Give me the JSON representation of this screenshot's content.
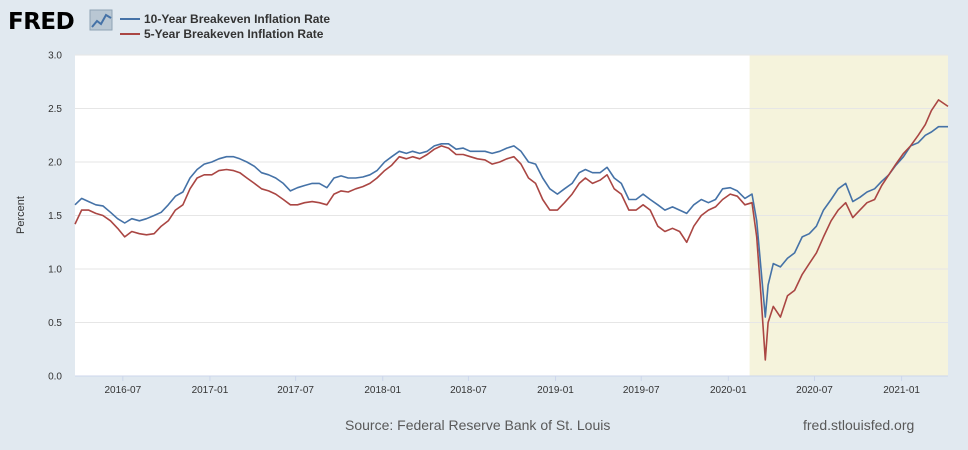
{
  "header": {
    "logo_text": "FRED",
    "logo_icon": "trend-line-icon"
  },
  "colors": {
    "background": "#e1e9f0",
    "plot_background": "#ffffff",
    "recession_shade": "#f5f3dc",
    "gridline": "#e6e6e6",
    "series_10y": "#4572a7",
    "series_5y": "#aa4643"
  },
  "footer": {
    "source": "Source: Federal Reserve Bank of St. Louis",
    "url": "fred.stlouisfed.org"
  },
  "chart_data": {
    "type": "line",
    "title": "",
    "xlabel": "",
    "ylabel": "Percent",
    "ylim": [
      0,
      3
    ],
    "yticks": [
      "0.0",
      "0.5",
      "1.0",
      "1.5",
      "2.0",
      "2.5",
      "3.0"
    ],
    "xlim": [
      "2016-03-22",
      "2021-04-09"
    ],
    "xticks": [
      "2016-07",
      "2017-01",
      "2017-07",
      "2018-01",
      "2018-07",
      "2019-01",
      "2019-07",
      "2020-01",
      "2020-07",
      "2021-01"
    ],
    "grid": true,
    "legend_position": "top-left",
    "shaded_region": {
      "start": "2020-02-15",
      "end": "2021-04-09"
    },
    "series": [
      {
        "name": "10-Year Breakeven Inflation Rate",
        "color": "#4572a7",
        "points": [
          [
            "2016-03-22",
            1.6
          ],
          [
            "2016-04-05",
            1.66
          ],
          [
            "2016-04-20",
            1.63
          ],
          [
            "2016-05-05",
            1.6
          ],
          [
            "2016-05-20",
            1.59
          ],
          [
            "2016-06-05",
            1.53
          ],
          [
            "2016-06-20",
            1.47
          ],
          [
            "2016-07-05",
            1.43
          ],
          [
            "2016-07-20",
            1.47
          ],
          [
            "2016-08-05",
            1.45
          ],
          [
            "2016-08-20",
            1.47
          ],
          [
            "2016-09-05",
            1.5
          ],
          [
            "2016-09-20",
            1.53
          ],
          [
            "2016-10-05",
            1.6
          ],
          [
            "2016-10-20",
            1.68
          ],
          [
            "2016-11-05",
            1.72
          ],
          [
            "2016-11-20",
            1.85
          ],
          [
            "2016-12-05",
            1.93
          ],
          [
            "2016-12-20",
            1.98
          ],
          [
            "2017-01-05",
            2.0
          ],
          [
            "2017-01-20",
            2.03
          ],
          [
            "2017-02-05",
            2.05
          ],
          [
            "2017-02-20",
            2.05
          ],
          [
            "2017-03-05",
            2.03
          ],
          [
            "2017-03-20",
            2.0
          ],
          [
            "2017-04-05",
            1.96
          ],
          [
            "2017-04-20",
            1.9
          ],
          [
            "2017-05-05",
            1.88
          ],
          [
            "2017-05-20",
            1.85
          ],
          [
            "2017-06-05",
            1.8
          ],
          [
            "2017-06-20",
            1.73
          ],
          [
            "2017-07-05",
            1.76
          ],
          [
            "2017-07-20",
            1.78
          ],
          [
            "2017-08-05",
            1.8
          ],
          [
            "2017-08-20",
            1.8
          ],
          [
            "2017-09-05",
            1.76
          ],
          [
            "2017-09-20",
            1.85
          ],
          [
            "2017-10-05",
            1.87
          ],
          [
            "2017-10-20",
            1.85
          ],
          [
            "2017-11-05",
            1.85
          ],
          [
            "2017-11-20",
            1.86
          ],
          [
            "2017-12-05",
            1.88
          ],
          [
            "2017-12-20",
            1.92
          ],
          [
            "2018-01-05",
            2.0
          ],
          [
            "2018-01-20",
            2.05
          ],
          [
            "2018-02-05",
            2.1
          ],
          [
            "2018-02-20",
            2.08
          ],
          [
            "2018-03-05",
            2.1
          ],
          [
            "2018-03-20",
            2.08
          ],
          [
            "2018-04-05",
            2.1
          ],
          [
            "2018-04-20",
            2.15
          ],
          [
            "2018-05-05",
            2.17
          ],
          [
            "2018-05-20",
            2.17
          ],
          [
            "2018-06-05",
            2.12
          ],
          [
            "2018-06-20",
            2.13
          ],
          [
            "2018-07-05",
            2.1
          ],
          [
            "2018-07-20",
            2.1
          ],
          [
            "2018-08-05",
            2.1
          ],
          [
            "2018-08-20",
            2.08
          ],
          [
            "2018-09-05",
            2.1
          ],
          [
            "2018-09-20",
            2.13
          ],
          [
            "2018-10-05",
            2.15
          ],
          [
            "2018-10-20",
            2.1
          ],
          [
            "2018-11-05",
            2.0
          ],
          [
            "2018-11-20",
            1.98
          ],
          [
            "2018-12-05",
            1.85
          ],
          [
            "2018-12-20",
            1.75
          ],
          [
            "2019-01-05",
            1.7
          ],
          [
            "2019-01-20",
            1.75
          ],
          [
            "2019-02-05",
            1.8
          ],
          [
            "2019-02-20",
            1.9
          ],
          [
            "2019-03-05",
            1.93
          ],
          [
            "2019-03-20",
            1.9
          ],
          [
            "2019-04-05",
            1.9
          ],
          [
            "2019-04-20",
            1.95
          ],
          [
            "2019-05-05",
            1.85
          ],
          [
            "2019-05-20",
            1.8
          ],
          [
            "2019-06-05",
            1.65
          ],
          [
            "2019-06-20",
            1.65
          ],
          [
            "2019-07-05",
            1.7
          ],
          [
            "2019-07-20",
            1.65
          ],
          [
            "2019-08-05",
            1.6
          ],
          [
            "2019-08-20",
            1.55
          ],
          [
            "2019-09-05",
            1.58
          ],
          [
            "2019-09-20",
            1.55
          ],
          [
            "2019-10-05",
            1.52
          ],
          [
            "2019-10-20",
            1.6
          ],
          [
            "2019-11-05",
            1.65
          ],
          [
            "2019-11-20",
            1.62
          ],
          [
            "2019-12-05",
            1.65
          ],
          [
            "2019-12-20",
            1.75
          ],
          [
            "2020-01-05",
            1.76
          ],
          [
            "2020-01-20",
            1.73
          ],
          [
            "2020-02-05",
            1.66
          ],
          [
            "2020-02-20",
            1.7
          ],
          [
            "2020-03-01",
            1.45
          ],
          [
            "2020-03-10",
            1.0
          ],
          [
            "2020-03-19",
            0.55
          ],
          [
            "2020-03-25",
            0.85
          ],
          [
            "2020-04-05",
            1.05
          ],
          [
            "2020-04-20",
            1.02
          ],
          [
            "2020-05-05",
            1.1
          ],
          [
            "2020-05-20",
            1.15
          ],
          [
            "2020-06-05",
            1.3
          ],
          [
            "2020-06-20",
            1.33
          ],
          [
            "2020-07-05",
            1.4
          ],
          [
            "2020-07-20",
            1.55
          ],
          [
            "2020-08-05",
            1.65
          ],
          [
            "2020-08-20",
            1.75
          ],
          [
            "2020-09-05",
            1.8
          ],
          [
            "2020-09-20",
            1.63
          ],
          [
            "2020-10-05",
            1.67
          ],
          [
            "2020-10-20",
            1.72
          ],
          [
            "2020-11-05",
            1.75
          ],
          [
            "2020-11-20",
            1.82
          ],
          [
            "2020-12-05",
            1.88
          ],
          [
            "2020-12-20",
            1.97
          ],
          [
            "2021-01-05",
            2.05
          ],
          [
            "2021-01-20",
            2.15
          ],
          [
            "2021-02-05",
            2.18
          ],
          [
            "2021-02-20",
            2.25
          ],
          [
            "2021-03-05",
            2.28
          ],
          [
            "2021-03-20",
            2.33
          ],
          [
            "2021-04-09",
            2.33
          ]
        ]
      },
      {
        "name": "5-Year Breakeven Inflation Rate",
        "color": "#aa4643",
        "points": [
          [
            "2016-03-22",
            1.42
          ],
          [
            "2016-04-05",
            1.55
          ],
          [
            "2016-04-20",
            1.55
          ],
          [
            "2016-05-05",
            1.52
          ],
          [
            "2016-05-20",
            1.5
          ],
          [
            "2016-06-05",
            1.45
          ],
          [
            "2016-06-20",
            1.38
          ],
          [
            "2016-07-05",
            1.3
          ],
          [
            "2016-07-20",
            1.35
          ],
          [
            "2016-08-05",
            1.33
          ],
          [
            "2016-08-20",
            1.32
          ],
          [
            "2016-09-05",
            1.33
          ],
          [
            "2016-09-20",
            1.4
          ],
          [
            "2016-10-05",
            1.45
          ],
          [
            "2016-10-20",
            1.55
          ],
          [
            "2016-11-05",
            1.6
          ],
          [
            "2016-11-20",
            1.75
          ],
          [
            "2016-12-05",
            1.85
          ],
          [
            "2016-12-20",
            1.88
          ],
          [
            "2017-01-05",
            1.88
          ],
          [
            "2017-01-20",
            1.92
          ],
          [
            "2017-02-05",
            1.93
          ],
          [
            "2017-02-20",
            1.92
          ],
          [
            "2017-03-05",
            1.9
          ],
          [
            "2017-03-20",
            1.85
          ],
          [
            "2017-04-05",
            1.8
          ],
          [
            "2017-04-20",
            1.75
          ],
          [
            "2017-05-05",
            1.73
          ],
          [
            "2017-05-20",
            1.7
          ],
          [
            "2017-06-05",
            1.65
          ],
          [
            "2017-06-20",
            1.6
          ],
          [
            "2017-07-05",
            1.6
          ],
          [
            "2017-07-20",
            1.62
          ],
          [
            "2017-08-05",
            1.63
          ],
          [
            "2017-08-20",
            1.62
          ],
          [
            "2017-09-05",
            1.6
          ],
          [
            "2017-09-20",
            1.7
          ],
          [
            "2017-10-05",
            1.73
          ],
          [
            "2017-10-20",
            1.72
          ],
          [
            "2017-11-05",
            1.75
          ],
          [
            "2017-11-20",
            1.77
          ],
          [
            "2017-12-05",
            1.8
          ],
          [
            "2017-12-20",
            1.85
          ],
          [
            "2018-01-05",
            1.92
          ],
          [
            "2018-01-20",
            1.97
          ],
          [
            "2018-02-05",
            2.05
          ],
          [
            "2018-02-20",
            2.03
          ],
          [
            "2018-03-05",
            2.05
          ],
          [
            "2018-03-20",
            2.03
          ],
          [
            "2018-04-05",
            2.07
          ],
          [
            "2018-04-20",
            2.12
          ],
          [
            "2018-05-05",
            2.15
          ],
          [
            "2018-05-20",
            2.13
          ],
          [
            "2018-06-05",
            2.07
          ],
          [
            "2018-06-20",
            2.07
          ],
          [
            "2018-07-05",
            2.05
          ],
          [
            "2018-07-20",
            2.03
          ],
          [
            "2018-08-05",
            2.02
          ],
          [
            "2018-08-20",
            1.98
          ],
          [
            "2018-09-05",
            2.0
          ],
          [
            "2018-09-20",
            2.03
          ],
          [
            "2018-10-05",
            2.05
          ],
          [
            "2018-10-20",
            1.98
          ],
          [
            "2018-11-05",
            1.85
          ],
          [
            "2018-11-20",
            1.8
          ],
          [
            "2018-12-05",
            1.65
          ],
          [
            "2018-12-20",
            1.55
          ],
          [
            "2019-01-05",
            1.55
          ],
          [
            "2019-01-20",
            1.62
          ],
          [
            "2019-02-05",
            1.7
          ],
          [
            "2019-02-20",
            1.8
          ],
          [
            "2019-03-05",
            1.85
          ],
          [
            "2019-03-20",
            1.8
          ],
          [
            "2019-04-05",
            1.83
          ],
          [
            "2019-04-20",
            1.88
          ],
          [
            "2019-05-05",
            1.75
          ],
          [
            "2019-05-20",
            1.7
          ],
          [
            "2019-06-05",
            1.55
          ],
          [
            "2019-06-20",
            1.55
          ],
          [
            "2019-07-05",
            1.6
          ],
          [
            "2019-07-20",
            1.55
          ],
          [
            "2019-08-05",
            1.4
          ],
          [
            "2019-08-20",
            1.35
          ],
          [
            "2019-09-05",
            1.38
          ],
          [
            "2019-09-20",
            1.35
          ],
          [
            "2019-10-05",
            1.25
          ],
          [
            "2019-10-20",
            1.4
          ],
          [
            "2019-11-05",
            1.5
          ],
          [
            "2019-11-20",
            1.55
          ],
          [
            "2019-12-05",
            1.58
          ],
          [
            "2019-12-20",
            1.65
          ],
          [
            "2020-01-05",
            1.7
          ],
          [
            "2020-01-20",
            1.68
          ],
          [
            "2020-02-05",
            1.6
          ],
          [
            "2020-02-20",
            1.62
          ],
          [
            "2020-03-01",
            1.3
          ],
          [
            "2020-03-10",
            0.75
          ],
          [
            "2020-03-19",
            0.15
          ],
          [
            "2020-03-25",
            0.5
          ],
          [
            "2020-04-05",
            0.65
          ],
          [
            "2020-04-20",
            0.55
          ],
          [
            "2020-05-05",
            0.75
          ],
          [
            "2020-05-20",
            0.8
          ],
          [
            "2020-06-05",
            0.95
          ],
          [
            "2020-06-20",
            1.05
          ],
          [
            "2020-07-05",
            1.15
          ],
          [
            "2020-07-20",
            1.3
          ],
          [
            "2020-08-05",
            1.45
          ],
          [
            "2020-08-20",
            1.55
          ],
          [
            "2020-09-05",
            1.62
          ],
          [
            "2020-09-20",
            1.48
          ],
          [
            "2020-10-05",
            1.55
          ],
          [
            "2020-10-20",
            1.62
          ],
          [
            "2020-11-05",
            1.65
          ],
          [
            "2020-11-20",
            1.78
          ],
          [
            "2020-12-05",
            1.88
          ],
          [
            "2020-12-20",
            1.98
          ],
          [
            "2021-01-05",
            2.08
          ],
          [
            "2021-01-20",
            2.15
          ],
          [
            "2021-02-05",
            2.25
          ],
          [
            "2021-02-20",
            2.35
          ],
          [
            "2021-03-05",
            2.48
          ],
          [
            "2021-03-20",
            2.58
          ],
          [
            "2021-04-09",
            2.52
          ]
        ]
      }
    ]
  }
}
